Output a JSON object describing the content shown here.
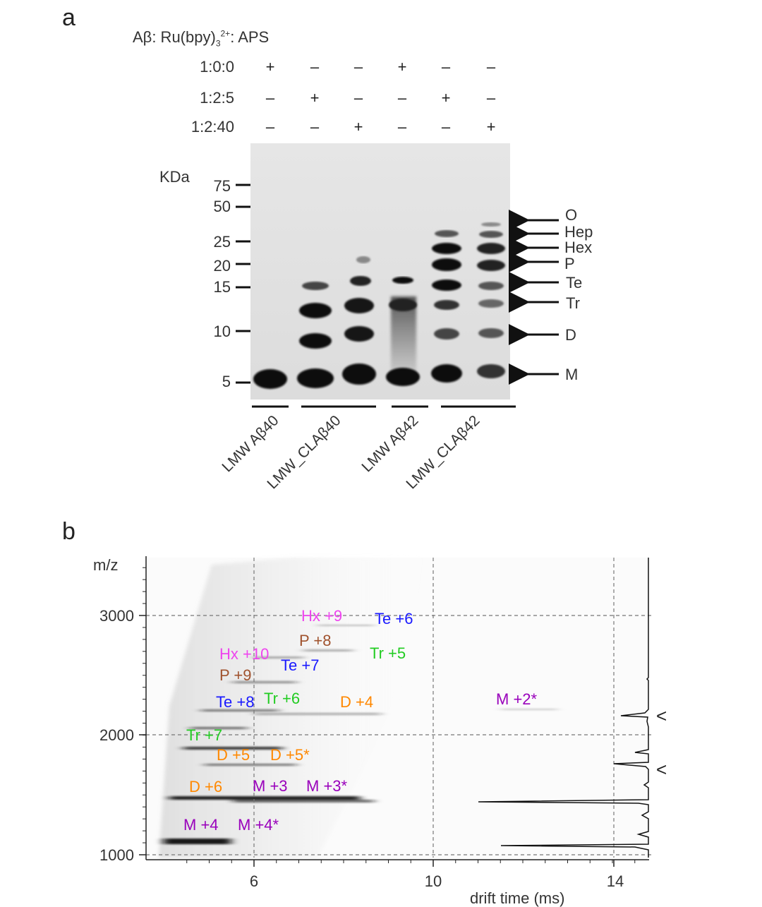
{
  "panel_a": {
    "letter": "a",
    "ratio_header": {
      "prefix": "Aβ: Ru(bpy)",
      "sub": "3",
      "sup": "2+",
      "suffix": ": APS"
    },
    "conditions": [
      {
        "label": "1:0:0",
        "signs": [
          "+",
          "–",
          "–",
          "+",
          "–",
          "–"
        ]
      },
      {
        "label": "1:2:5",
        "signs": [
          "–",
          "+",
          "–",
          "–",
          "+",
          "–"
        ]
      },
      {
        "label": "1:2:40",
        "signs": [
          "–",
          "–",
          "+",
          "–",
          "–",
          "+"
        ]
      }
    ],
    "kda_label": "KDa",
    "markers": [
      "75",
      "50",
      "25",
      "20",
      "15",
      "10",
      "5"
    ],
    "band_labels": [
      "O",
      "Hep",
      "Hex",
      "P",
      "Te",
      "Tr",
      "D",
      "M"
    ],
    "lane_groups": [
      "LMW Aβ40",
      "LMW_CLAβ40",
      "LMW Aβ42",
      "LMW_CLAβ42"
    ]
  },
  "panel_b": {
    "letter": "b",
    "y_axis_label": "m/z",
    "y_ticks": [
      "3000",
      "2000",
      "1000"
    ],
    "x_ticks": [
      "6",
      "10",
      "14"
    ],
    "x_axis_label": "drift time (ms)",
    "peak_markers": [
      "<",
      "<"
    ],
    "species": [
      {
        "text": "Hx +9",
        "color": "#ee44ee"
      },
      {
        "text": "Te +6",
        "color": "#1a1aff"
      },
      {
        "text": "P +8",
        "color": "#a0522d"
      },
      {
        "text": "Tr +5",
        "color": "#22cc22"
      },
      {
        "text": "Hx +10",
        "color": "#ee44ee"
      },
      {
        "text": "Te +7",
        "color": "#1a1aff"
      },
      {
        "text": "P +9",
        "color": "#a0522d"
      },
      {
        "text": "Te +8",
        "color": "#1a1aff"
      },
      {
        "text": "Tr +6",
        "color": "#22cc22"
      },
      {
        "text": "D +4",
        "color": "#ff8800"
      },
      {
        "text": "M +2*",
        "color": "#9900bb"
      },
      {
        "text": "Tr +7",
        "color": "#22cc22"
      },
      {
        "text": "D +5",
        "color": "#ff8800"
      },
      {
        "text": "D +5*",
        "color": "#ff8800"
      },
      {
        "text": "D +6",
        "color": "#ff8800"
      },
      {
        "text": "M +3",
        "color": "#9900bb"
      },
      {
        "text": "M +3*",
        "color": "#9900bb"
      },
      {
        "text": "M +4",
        "color": "#9900bb"
      },
      {
        "text": "M +4*",
        "color": "#9900bb"
      }
    ]
  }
}
